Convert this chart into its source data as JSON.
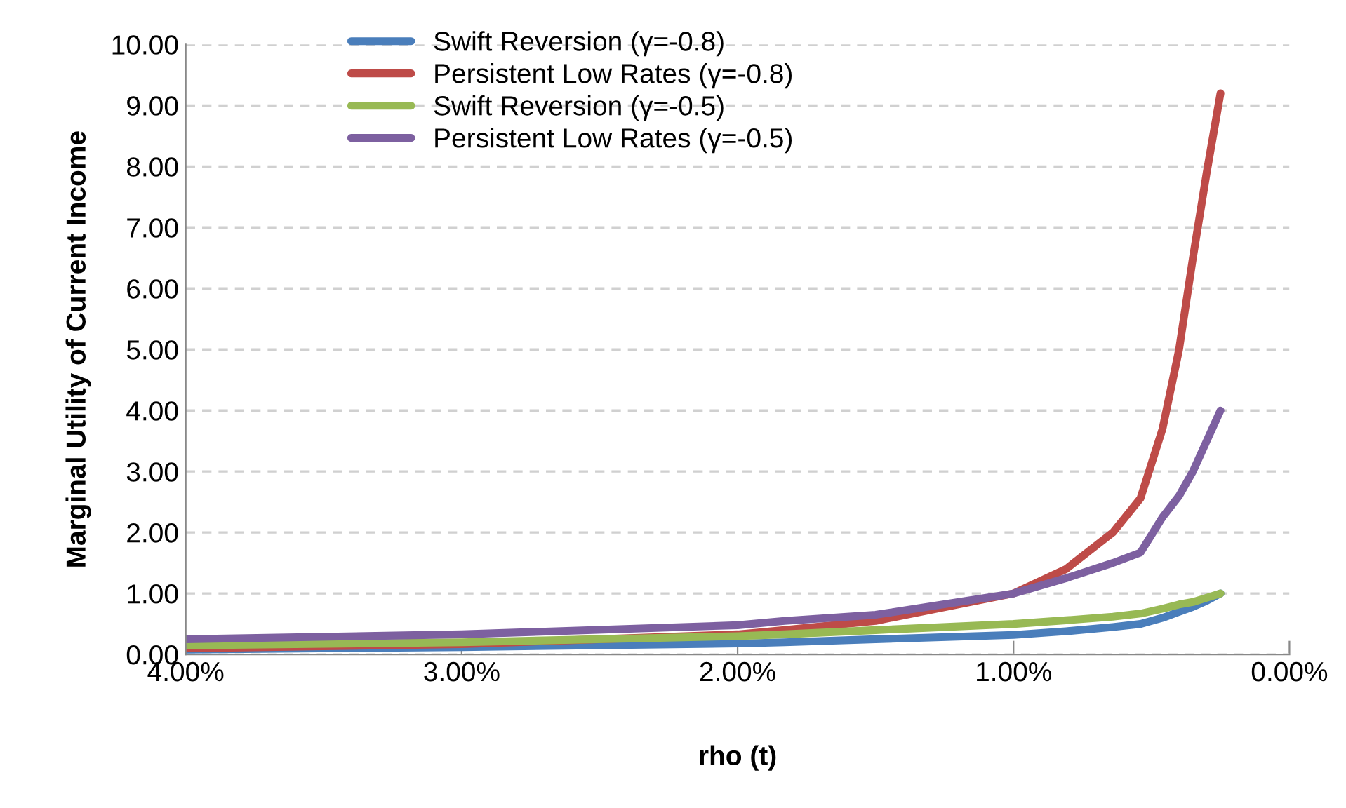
{
  "chart_data": {
    "type": "line",
    "xlabel": "rho (t)",
    "ylabel": "Marginal Utility of Current Income",
    "x": [
      4.0,
      3.0,
      2.0,
      1.83,
      1.5,
      1.0,
      0.81,
      0.64,
      0.54,
      0.46,
      0.4,
      0.35,
      0.3,
      0.25
    ],
    "series": [
      {
        "name": "Swift Reversion (γ=-0.8)",
        "color": "#4a7ebb",
        "values": [
          0.08,
          0.12,
          0.18,
          0.2,
          0.25,
          0.32,
          0.38,
          0.45,
          0.5,
          0.6,
          0.7,
          0.78,
          0.88,
          1.0
        ]
      },
      {
        "name": "Persistent Low Rates (γ=-0.8)",
        "color": "#be4b48",
        "values": [
          0.1,
          0.17,
          0.33,
          0.4,
          0.55,
          1.0,
          1.4,
          2.0,
          2.56,
          3.7,
          5.0,
          6.5,
          7.9,
          9.2
        ]
      },
      {
        "name": "Swift Reversion (γ=-0.5)",
        "color": "#98b954",
        "values": [
          0.15,
          0.2,
          0.3,
          0.33,
          0.4,
          0.5,
          0.56,
          0.62,
          0.67,
          0.75,
          0.82,
          0.86,
          0.93,
          1.0
        ]
      },
      {
        "name": "Persistent Low Rates (γ=-0.5)",
        "color": "#7d60a0",
        "values": [
          0.25,
          0.33,
          0.48,
          0.55,
          0.65,
          1.0,
          1.25,
          1.5,
          1.67,
          2.25,
          2.6,
          3.0,
          3.5,
          4.0
        ]
      }
    ],
    "xlim": [
      4.0,
      0.0
    ],
    "xticks": [
      {
        "value": 4,
        "label": "4.00%"
      },
      {
        "value": 3,
        "label": "3.00%"
      },
      {
        "value": 2,
        "label": "2.00%"
      },
      {
        "value": 1,
        "label": "1.00%"
      },
      {
        "value": 0,
        "label": "0.00%"
      }
    ],
    "ylim": [
      0,
      10
    ],
    "yticks": [
      {
        "value": 0,
        "label": "0.00"
      },
      {
        "value": 1,
        "label": "1.00"
      },
      {
        "value": 2,
        "label": "2.00"
      },
      {
        "value": 3,
        "label": "3.00"
      },
      {
        "value": 4,
        "label": "4.00"
      },
      {
        "value": 5,
        "label": "5.00"
      },
      {
        "value": 6,
        "label": "6.00"
      },
      {
        "value": 7,
        "label": "7.00"
      },
      {
        "value": 8,
        "label": "8.00"
      },
      {
        "value": 9,
        "label": "9.00"
      },
      {
        "value": 10,
        "label": "10.00"
      }
    ],
    "grid": "y",
    "legend": "top left",
    "marker": "none",
    "line_style": "solid"
  }
}
